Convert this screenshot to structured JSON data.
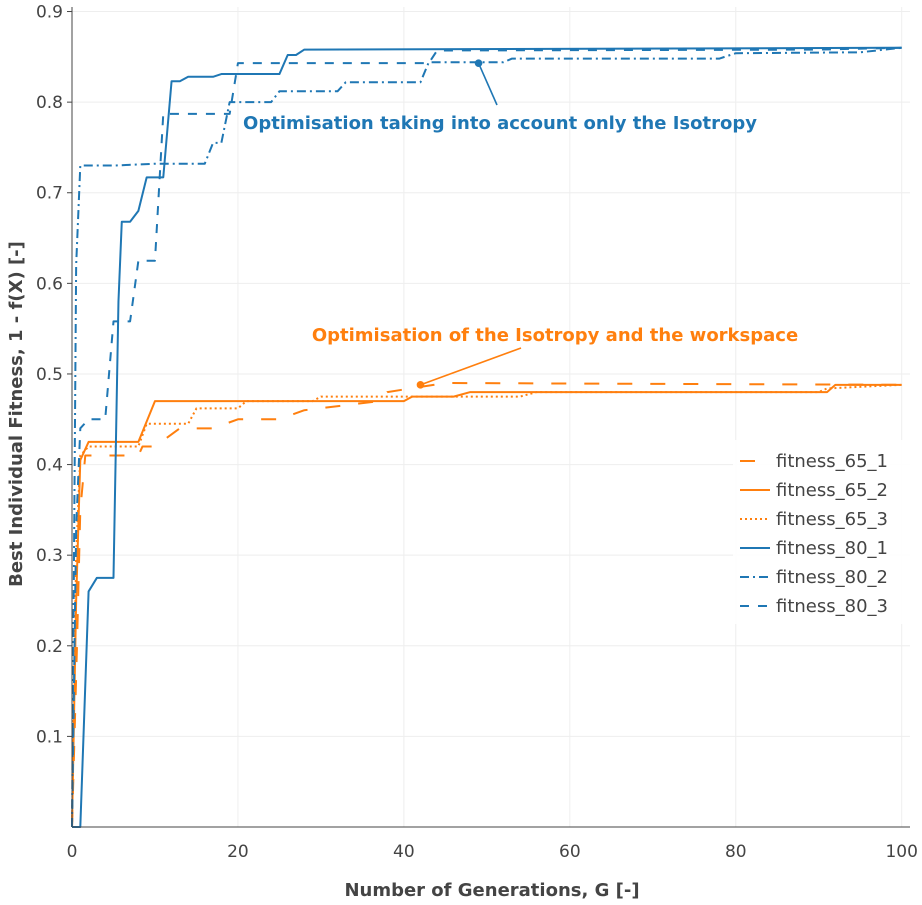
{
  "chart_data": {
    "type": "line",
    "xlabel": "Number of Generations, G [-]",
    "ylabel": "Best Individual Fitness, 1 - f(X) [-]",
    "xlim": [
      0,
      101
    ],
    "ylim": [
      0,
      0.905
    ],
    "x_ticks": [
      "0",
      "20",
      "40",
      "60",
      "80",
      "100"
    ],
    "y_ticks": [
      "0.1",
      "0.2",
      "0.3",
      "0.4",
      "0.5",
      "0.6",
      "0.7",
      "0.8",
      "0.9"
    ],
    "grid": true,
    "legend_position": "right",
    "colors": {
      "blue": "#1f77b4",
      "orange": "#ff7f0e",
      "grid": "#eeeeee",
      "axis": "#444444"
    },
    "series": [
      {
        "name": "fitness_65_1",
        "color": "#ff7f0e",
        "dash": "long",
        "points": [
          [
            0,
            0
          ],
          [
            0.6,
            0.2
          ],
          [
            1,
            0.35
          ],
          [
            1.6,
            0.41
          ],
          [
            2,
            0.41
          ],
          [
            8,
            0.41
          ],
          [
            8.5,
            0.42
          ],
          [
            10,
            0.42
          ],
          [
            13,
            0.44
          ],
          [
            17,
            0.44
          ],
          [
            20,
            0.45
          ],
          [
            25,
            0.45
          ],
          [
            28,
            0.46
          ],
          [
            37,
            0.47
          ],
          [
            38,
            0.48
          ],
          [
            45,
            0.49
          ],
          [
            100,
            0.488
          ]
        ]
      },
      {
        "name": "fitness_65_2",
        "color": "#ff7f0e",
        "dash": "solid",
        "points": [
          [
            0,
            0
          ],
          [
            0.5,
            0.25
          ],
          [
            1,
            0.405
          ],
          [
            2,
            0.425
          ],
          [
            8,
            0.425
          ],
          [
            10,
            0.47
          ],
          [
            40,
            0.47
          ],
          [
            41,
            0.475
          ],
          [
            46,
            0.475
          ],
          [
            48,
            0.48
          ],
          [
            56,
            0.48
          ],
          [
            91,
            0.48
          ],
          [
            92,
            0.488
          ],
          [
            100,
            0.488
          ]
        ]
      },
      {
        "name": "fitness_65_3",
        "color": "#ff7f0e",
        "dash": "dot",
        "points": [
          [
            0,
            0
          ],
          [
            0.5,
            0.3
          ],
          [
            1,
            0.41
          ],
          [
            2,
            0.42
          ],
          [
            8,
            0.42
          ],
          [
            9,
            0.445
          ],
          [
            14,
            0.445
          ],
          [
            15,
            0.462
          ],
          [
            20,
            0.462
          ],
          [
            21,
            0.47
          ],
          [
            29,
            0.47
          ],
          [
            30,
            0.475
          ],
          [
            54,
            0.475
          ],
          [
            56,
            0.48
          ],
          [
            90,
            0.48
          ],
          [
            91,
            0.484
          ],
          [
            100,
            0.488
          ]
        ]
      },
      {
        "name": "fitness_80_1",
        "color": "#1f77b4",
        "dash": "solid",
        "points": [
          [
            0,
            0
          ],
          [
            1,
            0
          ],
          [
            2,
            0.26
          ],
          [
            3,
            0.275
          ],
          [
            5,
            0.275
          ],
          [
            5.6,
            0.58
          ],
          [
            6,
            0.668
          ],
          [
            7,
            0.668
          ],
          [
            8,
            0.68
          ],
          [
            9,
            0.717
          ],
          [
            11,
            0.717
          ],
          [
            12,
            0.823
          ],
          [
            13,
            0.823
          ],
          [
            14,
            0.828
          ],
          [
            17,
            0.828
          ],
          [
            18,
            0.831
          ],
          [
            25,
            0.831
          ],
          [
            26,
            0.852
          ],
          [
            27,
            0.852
          ],
          [
            28,
            0.858
          ],
          [
            100,
            0.86
          ]
        ]
      },
      {
        "name": "fitness_80_2",
        "color": "#1f77b4",
        "dash": "dashdot",
        "points": [
          [
            0,
            0
          ],
          [
            0.5,
            0.62
          ],
          [
            1,
            0.73
          ],
          [
            5,
            0.73
          ],
          [
            10,
            0.732
          ],
          [
            16,
            0.732
          ],
          [
            17,
            0.755
          ],
          [
            18,
            0.755
          ],
          [
            19,
            0.8
          ],
          [
            24,
            0.8
          ],
          [
            25,
            0.812
          ],
          [
            32,
            0.812
          ],
          [
            33,
            0.822
          ],
          [
            38,
            0.822
          ],
          [
            42,
            0.822
          ],
          [
            43,
            0.844
          ],
          [
            52,
            0.844
          ],
          [
            53,
            0.848
          ],
          [
            78,
            0.848
          ],
          [
            80,
            0.854
          ],
          [
            95,
            0.855
          ],
          [
            100,
            0.86
          ]
        ]
      },
      {
        "name": "fitness_80_3",
        "color": "#1f77b4",
        "dash": "dash",
        "points": [
          [
            0,
            0
          ],
          [
            0.5,
            0.33
          ],
          [
            1,
            0.44
          ],
          [
            2,
            0.45
          ],
          [
            4,
            0.45
          ],
          [
            5,
            0.558
          ],
          [
            7,
            0.558
          ],
          [
            8,
            0.625
          ],
          [
            10,
            0.625
          ],
          [
            11,
            0.787
          ],
          [
            19,
            0.787
          ],
          [
            20,
            0.843
          ],
          [
            43,
            0.843
          ],
          [
            44,
            0.857
          ],
          [
            90,
            0.858
          ],
          [
            100,
            0.86
          ]
        ]
      }
    ],
    "annotations": [
      {
        "text": "Optimisation taking into account only the Isotropy",
        "color": "#1f77b4",
        "point": [
          49,
          0.843
        ]
      },
      {
        "text": "Optimisation of the Isotropy and the workspace",
        "color": "#ff7f0e",
        "point": [
          42,
          0.488
        ]
      }
    ]
  }
}
